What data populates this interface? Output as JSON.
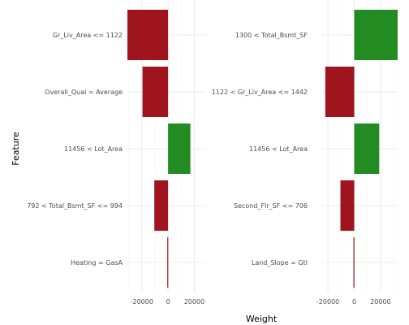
{
  "chart_data": [
    {
      "type": "bar",
      "orientation": "horizontal",
      "categories": [
        "Gr_Liv_Area <= 1122",
        "Overall_Qual = Average",
        "11456 < Lot_Area",
        "792 < Total_Bsmt_SF <= 994",
        "Heating = GasA"
      ],
      "values": [
        -31000,
        -19500,
        17000,
        -10500,
        -600
      ],
      "xlim": [
        -31000,
        29000
      ],
      "xticks": [
        -20000,
        0,
        20000
      ],
      "xtick_labels": [
        "-20000",
        "0",
        "20000"
      ],
      "grid": true
    },
    {
      "type": "bar",
      "orientation": "horizontal",
      "categories": [
        "1300 < Total_Bsmt_SF",
        "1122 < Gr_Liv_Area <= 1442",
        "11456 < Lot_Area",
        "Second_Flr_SF <= 706",
        "Land_Slope = Gtl"
      ],
      "values": [
        33000,
        -22000,
        19000,
        -10500,
        -600
      ],
      "xlim": [
        -25000,
        33000
      ],
      "xticks": [
        -20000,
        0,
        20000
      ],
      "xtick_labels": [
        "-20000",
        "0",
        "20000"
      ],
      "grid": true
    }
  ],
  "labels": {
    "xlabel": "Weight",
    "ylabel": "Feature"
  },
  "colors": {
    "positive": "#228b22",
    "negative": "#a0141e",
    "tick_text": "#4d4d4d"
  }
}
